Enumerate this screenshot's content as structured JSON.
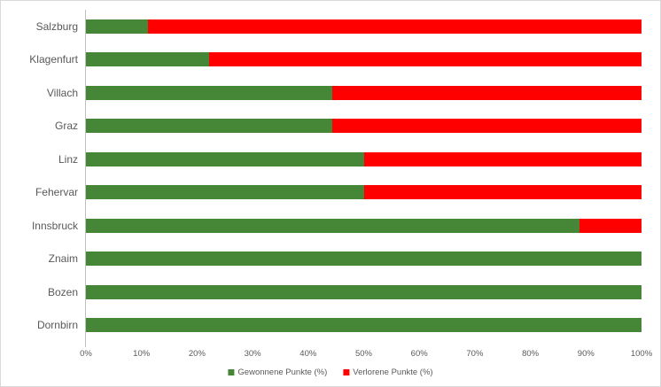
{
  "chart_data": {
    "type": "bar",
    "orientation": "horizontal",
    "stacked": true,
    "title": "",
    "categories": [
      "Salzburg",
      "Klagenfurt",
      "Villach",
      "Graz",
      "Linz",
      "Fehervar",
      "Innsbruck",
      "Znaim",
      "Bozen",
      "Dornbirn"
    ],
    "series": [
      {
        "name": "Gewonnene Punkte (%)",
        "color": "#468637",
        "values": [
          11.1,
          22.2,
          44.4,
          44.4,
          50,
          50,
          88.9,
          100,
          100,
          100
        ]
      },
      {
        "name": "Verlorene Punkte (%)",
        "color": "#ff0000",
        "values": [
          88.9,
          77.8,
          55.6,
          55.6,
          50,
          50,
          11.1,
          0,
          0,
          0
        ]
      }
    ],
    "x_axis": {
      "min": 0,
      "max": 100,
      "tick_step": 10,
      "tick_labels": [
        "0%",
        "10%",
        "20%",
        "30%",
        "40%",
        "50%",
        "60%",
        "70%",
        "80%",
        "90%",
        "100%"
      ]
    },
    "legend": {
      "position": "bottom",
      "entries": [
        {
          "label": "Gewonnene Punkte (%)",
          "color": "#468637"
        },
        {
          "label": "Verlorene Punkte (%)",
          "color": "#ff0000"
        }
      ]
    },
    "grid": false,
    "axis_line_color": "#bfbfbf",
    "text_color": "#595959",
    "background_color": "#ffffff"
  }
}
